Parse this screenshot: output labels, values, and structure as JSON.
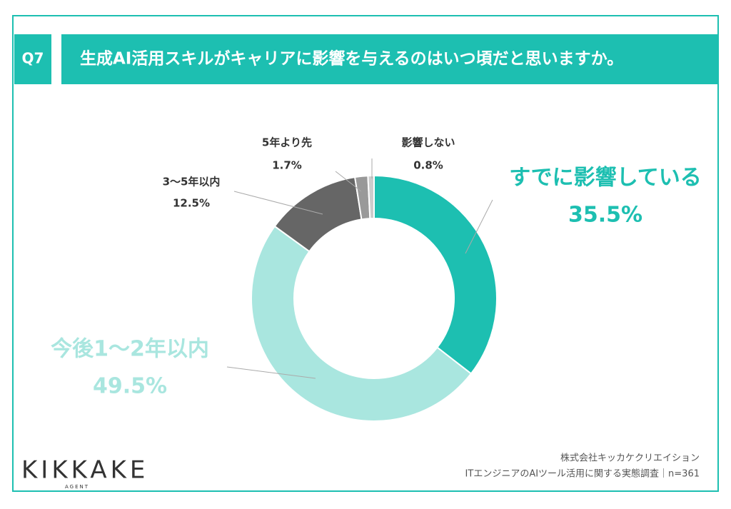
{
  "header": {
    "label": "Q7"
  },
  "chart_data": {
    "type": "donut",
    "title": "生成AI活用スキルがキャリアに影響を与えるのはいつ頃だと思いますか。",
    "categories": [
      "すでに影響している",
      "今後1〜2年以内",
      "3〜5年以内",
      "5年より先",
      "影響しない"
    ],
    "values": [
      35.5,
      49.5,
      12.5,
      1.7,
      0.8
    ],
    "value_labels": [
      "35.5%",
      "49.5%",
      "12.5%",
      "1.7%",
      "0.8%"
    ],
    "colors": [
      "#1dbfb1",
      "#a9e6df",
      "#666666",
      "#999999",
      "#cccccc"
    ]
  },
  "logo": {
    "name": "KIKKAKE",
    "sub": "AGENT"
  },
  "footer": {
    "company": "株式会社キッカケクリエイション",
    "survey": "ITエンジニアのAIツール活用に関する実態調査｜n=361"
  }
}
